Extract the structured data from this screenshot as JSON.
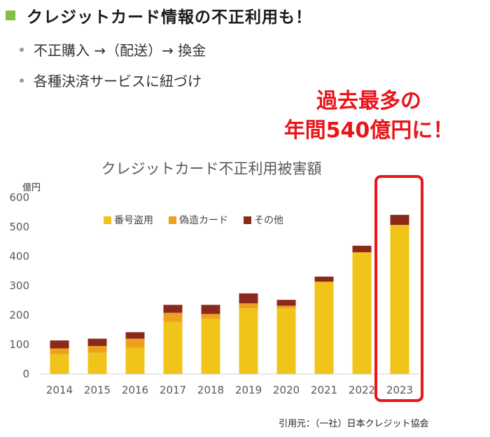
{
  "heading": "クレジットカード情報の不正利用も！",
  "bullets": [
    "不正購入 →（配送）→ 換金",
    "各種決済サービスに紐づけ"
  ],
  "callout": {
    "line1": "過去最多の",
    "line2": "年間540億円に！"
  },
  "source": "引用元：（一社）日本クレジット協会",
  "colors": {
    "series": [
      "#f0c419",
      "#f0a01e",
      "#8b2a1a"
    ],
    "highlight": "#e8151b",
    "bullet_square": "#7dc242",
    "callout_text": "#e8151b"
  },
  "chart_data": {
    "type": "bar",
    "stacked": true,
    "title": "クレジットカード不正利用被害額",
    "ylabel": "億円",
    "ylim": [
      0,
      600
    ],
    "yticks": [
      0,
      100,
      200,
      300,
      400,
      500,
      600
    ],
    "grid": false,
    "legend_position": "top-left",
    "categories": [
      "2014",
      "2015",
      "2016",
      "2017",
      "2018",
      "2019",
      "2020",
      "2021",
      "2022",
      "2023"
    ],
    "series": [
      {
        "name": "番号盗用",
        "values": [
          67,
          72,
          89,
          177,
          188,
          223,
          223,
          312,
          412,
          505
        ]
      },
      {
        "name": "偽造カード",
        "values": [
          20,
          23,
          31,
          31,
          16,
          17,
          9,
          2,
          2,
          2
        ]
      },
      {
        "name": "その他",
        "values": [
          27,
          25,
          22,
          27,
          31,
          34,
          20,
          17,
          22,
          34
        ]
      }
    ],
    "highlight_category": "2023"
  }
}
